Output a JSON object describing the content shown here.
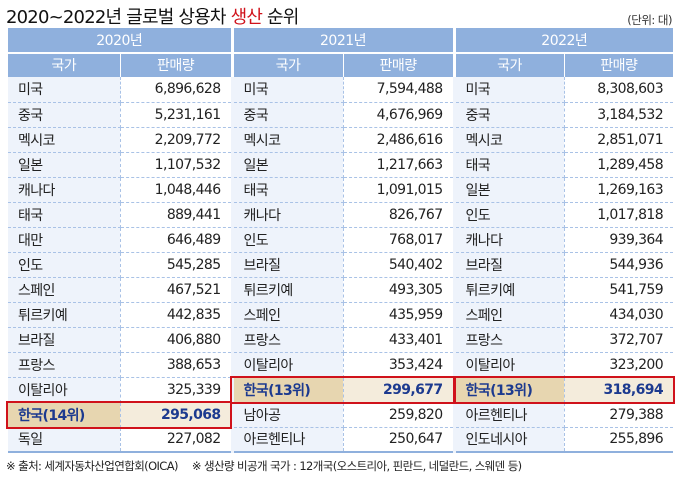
{
  "title": {
    "prefix": "2020~2022년 글로벌 상용차 ",
    "highlight": "생산",
    "suffix": " 순위"
  },
  "unit": "(단위: 대)",
  "years": [
    "2020년",
    "2021년",
    "2022년"
  ],
  "col_country": "국가",
  "col_sales": "판매량",
  "colors": {
    "header": "#8fb0dd",
    "highlight_border": "#d0121b",
    "korea_text": "#1c3a8f"
  },
  "rows": [
    [
      {
        "c": "미국",
        "v": "6,896,628"
      },
      {
        "c": "미국",
        "v": "7,594,488"
      },
      {
        "c": "미국",
        "v": "8,308,603"
      }
    ],
    [
      {
        "c": "중국",
        "v": "5,231,161"
      },
      {
        "c": "중국",
        "v": "4,676,969"
      },
      {
        "c": "중국",
        "v": "3,184,532"
      }
    ],
    [
      {
        "c": "멕시코",
        "v": "2,209,772"
      },
      {
        "c": "멕시코",
        "v": "2,486,616"
      },
      {
        "c": "멕시코",
        "v": "2,851,071"
      }
    ],
    [
      {
        "c": "일본",
        "v": "1,107,532"
      },
      {
        "c": "일본",
        "v": "1,217,663"
      },
      {
        "c": "태국",
        "v": "1,289,458"
      }
    ],
    [
      {
        "c": "캐나다",
        "v": "1,048,446"
      },
      {
        "c": "태국",
        "v": "1,091,015"
      },
      {
        "c": "일본",
        "v": "1,269,163"
      }
    ],
    [
      {
        "c": "태국",
        "v": "889,441"
      },
      {
        "c": "캐나다",
        "v": "826,767"
      },
      {
        "c": "인도",
        "v": "1,017,818"
      }
    ],
    [
      {
        "c": "대만",
        "v": "646,489"
      },
      {
        "c": "인도",
        "v": "768,017"
      },
      {
        "c": "캐나다",
        "v": "939,364"
      }
    ],
    [
      {
        "c": "인도",
        "v": "545,285"
      },
      {
        "c": "브라질",
        "v": "540,402"
      },
      {
        "c": "브라질",
        "v": "544,936"
      }
    ],
    [
      {
        "c": "스페인",
        "v": "467,521"
      },
      {
        "c": "튀르키예",
        "v": "493,305"
      },
      {
        "c": "튀르키예",
        "v": "541,759"
      }
    ],
    [
      {
        "c": "튀르키예",
        "v": "442,835"
      },
      {
        "c": "스페인",
        "v": "435,959"
      },
      {
        "c": "스페인",
        "v": "434,030"
      }
    ],
    [
      {
        "c": "브라질",
        "v": "406,880"
      },
      {
        "c": "프랑스",
        "v": "433,401"
      },
      {
        "c": "프랑스",
        "v": "372,707"
      }
    ],
    [
      {
        "c": "프랑스",
        "v": "388,653"
      },
      {
        "c": "이탈리아",
        "v": "353,424"
      },
      {
        "c": "이탈리아",
        "v": "323,200"
      }
    ],
    [
      {
        "c": "이탈리아",
        "v": "325,339"
      },
      {
        "c": "한국(13위)",
        "v": "299,677",
        "kr": true
      },
      {
        "c": "한국(13위)",
        "v": "318,694",
        "kr": true
      }
    ],
    [
      {
        "c": "한국(14위)",
        "v": "295,068",
        "kr": true
      },
      {
        "c": "남아공",
        "v": "259,820"
      },
      {
        "c": "아르헨티나",
        "v": "279,388"
      }
    ],
    [
      {
        "c": "독일",
        "v": "227,082"
      },
      {
        "c": "아르헨티나",
        "v": "250,647"
      },
      {
        "c": "인도네시아",
        "v": "255,896"
      }
    ]
  ],
  "footnotes": [
    "※ 출처: 세계자동차산업연합회(OICA)",
    "※ 생산량 비공개 국가 : 12개국(오스트리아, 핀란드, 네덜란드, 스웨덴 등)"
  ]
}
